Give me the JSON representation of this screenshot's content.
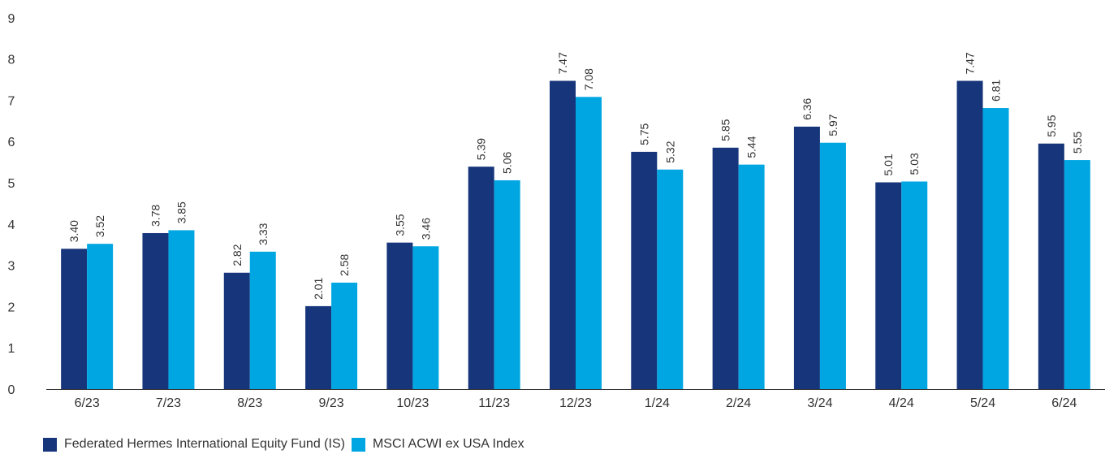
{
  "chart_data": {
    "type": "bar",
    "categories": [
      "6/23",
      "7/23",
      "8/23",
      "9/23",
      "10/23",
      "11/23",
      "12/23",
      "1/24",
      "2/24",
      "3/24",
      "4/24",
      "5/24",
      "6/24"
    ],
    "series": [
      {
        "name": "Federated Hermes International Equity Fund (IS)",
        "color": "#16357a",
        "values": [
          3.4,
          3.78,
          2.82,
          2.01,
          3.55,
          5.39,
          7.47,
          5.75,
          5.85,
          6.36,
          5.01,
          7.47,
          5.95
        ],
        "labels": [
          "3.40",
          "3.78",
          "2.82",
          "2.01",
          "3.55",
          "5.39",
          "7.47",
          "5.75",
          "5.85",
          "6.36",
          "5.01",
          "7.47",
          "5.95"
        ]
      },
      {
        "name": "MSCI ACWI ex USA Index",
        "color": "#00a6e2",
        "values": [
          3.52,
          3.85,
          3.33,
          2.58,
          3.46,
          5.06,
          7.08,
          5.32,
          5.44,
          5.97,
          5.03,
          6.81,
          5.55
        ],
        "labels": [
          "3.52",
          "3.85",
          "3.33",
          "2.58",
          "3.46",
          "5.06",
          "7.08",
          "5.32",
          "5.44",
          "5.97",
          "5.03",
          "6.81",
          "5.55"
        ]
      }
    ],
    "yticks": [
      "0",
      "1",
      "2",
      "3",
      "4",
      "5",
      "6",
      "7",
      "8",
      "9"
    ],
    "ylim": [
      0,
      9
    ],
    "grid": false,
    "legend_position": "bottom-left"
  }
}
